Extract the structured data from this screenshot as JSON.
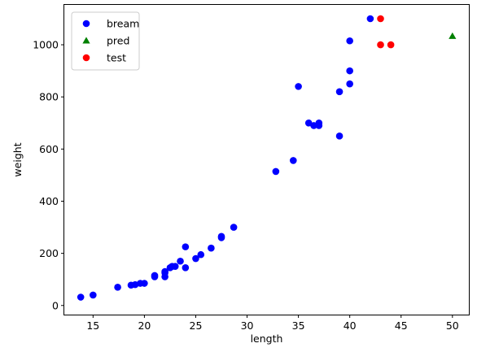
{
  "chart_data": {
    "type": "scatter",
    "title": "",
    "xlabel": "length",
    "ylabel": "weight",
    "xlim": [
      12.2,
      51.6
    ],
    "ylim": [
      -35,
      1153
    ],
    "xticks": [
      15,
      20,
      25,
      30,
      35,
      40,
      45,
      50
    ],
    "yticks": [
      0,
      200,
      400,
      600,
      800,
      1000
    ],
    "grid": false,
    "legend_position": "top-left",
    "series": [
      {
        "name": "bream",
        "marker": "circle",
        "color": "#0000ff",
        "points": [
          [
            13.8,
            32
          ],
          [
            15.0,
            40
          ],
          [
            17.4,
            70
          ],
          [
            18.7,
            78
          ],
          [
            19.1,
            80
          ],
          [
            19.6,
            85
          ],
          [
            20.0,
            85
          ],
          [
            21.0,
            110
          ],
          [
            21.0,
            115
          ],
          [
            22.0,
            110
          ],
          [
            22.0,
            125
          ],
          [
            22.0,
            130
          ],
          [
            22.5,
            145
          ],
          [
            22.7,
            150
          ],
          [
            23.0,
            150
          ],
          [
            23.5,
            170
          ],
          [
            24.0,
            145
          ],
          [
            24.0,
            225
          ],
          [
            25.0,
            180
          ],
          [
            25.5,
            195
          ],
          [
            26.5,
            220
          ],
          [
            27.5,
            260
          ],
          [
            27.5,
            265
          ],
          [
            28.7,
            300
          ],
          [
            32.8,
            514
          ],
          [
            34.5,
            556
          ],
          [
            35.0,
            840
          ],
          [
            36.0,
            700
          ],
          [
            36.5,
            690
          ],
          [
            37.0,
            700
          ],
          [
            37.0,
            690
          ],
          [
            39.0,
            650
          ],
          [
            39.0,
            820
          ],
          [
            40.0,
            850
          ],
          [
            40.0,
            900
          ],
          [
            40.0,
            1015
          ],
          [
            42.0,
            1100
          ]
        ]
      },
      {
        "name": "pred",
        "marker": "triangle",
        "color": "#008000",
        "points": [
          [
            50.0,
            1033
          ]
        ]
      },
      {
        "name": "test",
        "marker": "circle",
        "color": "#ff0000",
        "points": [
          [
            43.0,
            1100
          ],
          [
            43.0,
            1000
          ],
          [
            44.0,
            1000
          ]
        ]
      }
    ]
  }
}
